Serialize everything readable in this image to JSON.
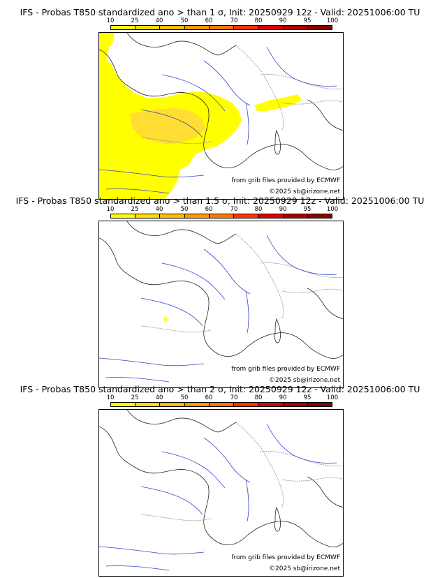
{
  "panels": [
    {
      "title": "IFS - Probas T850  standardized ano > than 1 σ, Init: 20250929 12z - Valid: 20251006:00 TU"
    },
    {
      "title": "IFS - Probas T850  standardized ano > than 1.5 σ, Init: 20250929 12z - Valid: 20251006:00 TU"
    },
    {
      "title": "IFS - Probas T850  standardized ano > than 2 σ, Init: 20250929 12z - Valid: 20251006:00 TU"
    }
  ],
  "scale": {
    "ticks": [
      "10",
      "25",
      "40",
      "50",
      "60",
      "70",
      "80",
      "90",
      "95",
      "100"
    ],
    "colors": [
      "#ffff00",
      "#ffdd00",
      "#ffbb00",
      "#ff9900",
      "#ff7700",
      "#ff3300",
      "#dd0000",
      "#aa0000",
      "#880000",
      "#550000"
    ]
  },
  "credits": {
    "source": "from grib files provided by ECMWF",
    "copyright": "©2025 sb@irizone.net"
  }
}
